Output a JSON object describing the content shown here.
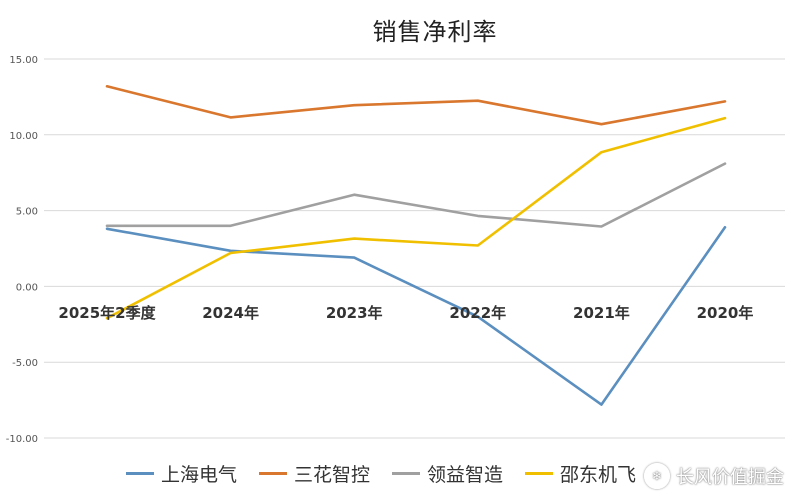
{
  "chart_data": {
    "type": "line",
    "title": "销售净利率",
    "categories": [
      "2025年2季度",
      "2024年",
      "2023年",
      "2022年",
      "2021年",
      "2020年"
    ],
    "ylim": [
      -10,
      15
    ],
    "yticks": [
      "15.00",
      "10.00",
      "5.00",
      "0.00",
      "-5.00",
      "-10.00"
    ],
    "ytick_values": [
      15,
      10,
      5,
      0,
      -5,
      -10
    ],
    "grid": true,
    "legend_position": "bottom",
    "series": [
      {
        "name": "上海电气",
        "color": "#5b8fbf",
        "values": [
          3.8,
          2.35,
          1.9,
          -2.0,
          -7.8,
          3.9
        ]
      },
      {
        "name": "三花智控",
        "color": "#d9772e",
        "values": [
          13.2,
          11.15,
          11.95,
          12.25,
          10.7,
          12.2
        ]
      },
      {
        "name": "领益智造",
        "color": "#a0a0a0",
        "values": [
          4.0,
          4.0,
          6.05,
          4.65,
          3.95,
          8.1
        ]
      },
      {
        "name": "邵东机飞",
        "color": "#f0c000",
        "values": [
          -2.1,
          2.2,
          3.15,
          2.7,
          8.85,
          11.1
        ]
      }
    ]
  },
  "watermark": {
    "icon": "snowball-icon",
    "text": "长风价值掘金"
  }
}
